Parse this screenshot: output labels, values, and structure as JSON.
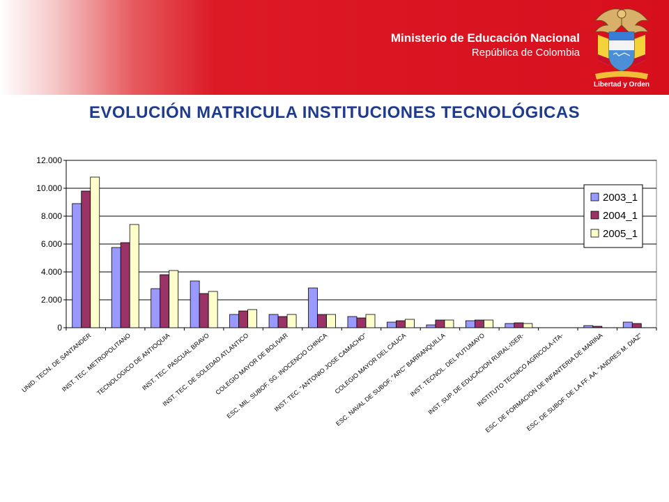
{
  "header": {
    "ministry_name": "Ministerio de Educación Nacional",
    "country": "República de Colombia",
    "motto": "Libertad y Orden"
  },
  "page_title": "EVOLUCIÓN MATRICULA INSTITUCIONES TECNOLÓGICAS",
  "colors": {
    "header_red": "#d70f1d",
    "title_blue": "#1f3b8f",
    "series_2003": "#9999ff",
    "series_2004": "#993366",
    "series_2005": "#ffffcc"
  },
  "chart_data": {
    "type": "bar",
    "title": "",
    "xlabel": "",
    "ylabel": "",
    "ylim": [
      0,
      12000
    ],
    "yticks": [
      0,
      2000,
      4000,
      6000,
      8000,
      10000,
      12000
    ],
    "ytick_labels": [
      "0",
      "2.000",
      "4.000",
      "6.000",
      "8.000",
      "10.000",
      "12.000"
    ],
    "grid": true,
    "legend_position": "right",
    "categories": [
      "UNID. TECN. DE SANTANDER",
      "INST. TEC. METROPOLITANO",
      "TECNOLOGICO DE ANTIOQUIA",
      "INST. TEC. PASCUAL BRAVO",
      "INST. TEC. DE SOLEDAD ATLANTICO",
      "COLEGIO MAYOR DE BOLIVAR",
      "ESC. MIL. SUBOF. SG. INOCENCIO CHINCA",
      "INST. TEC. \"ANTONIO JOSE CAMACHO\"",
      "COLEGIO MAYOR DEL CAUCA",
      "ESC. NAVAL DE SUBOF. \"ARC\" BARRANQUILLA",
      "INST. TECNOL. DEL PUTUMAYO",
      "INST. SUP. DE EDUCACION RURAL-ISER-",
      "INSTITUTO TECNICO AGRICOLA-ITA-",
      "ESC. DE FORMACION DE INFANTERIA DE MARINA",
      "ESC. DE SUBOF. DE LA FF. AA. \"ANDRES M. DIAZ\""
    ],
    "series": [
      {
        "name": "2003_1",
        "values": [
          8900,
          5750,
          2800,
          3350,
          950,
          950,
          2850,
          800,
          400,
          200,
          500,
          300,
          0,
          150,
          400
        ]
      },
      {
        "name": "2004_1",
        "values": [
          9800,
          6100,
          3800,
          2450,
          1200,
          800,
          950,
          700,
          500,
          550,
          550,
          350,
          0,
          100,
          300
        ]
      },
      {
        "name": "2005_1",
        "values": [
          10800,
          7400,
          4100,
          2600,
          1300,
          950,
          950,
          950,
          600,
          550,
          550,
          300,
          0,
          0,
          0
        ]
      }
    ]
  }
}
